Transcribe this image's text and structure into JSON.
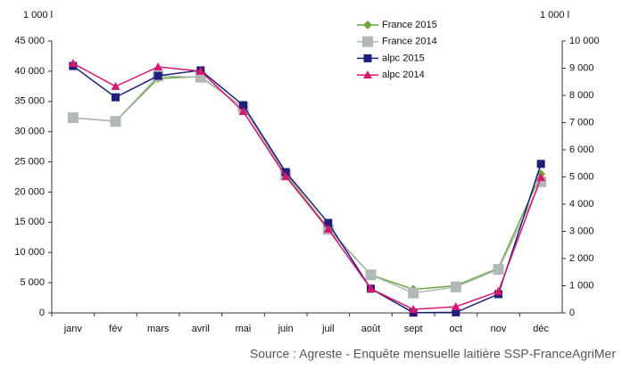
{
  "chart_data": {
    "type": "line",
    "y_axis_label": "1 000 l",
    "y2_axis_label": "1 000 l",
    "source": "Source : Agreste - Enquête mensuelle laitière SSP-FranceAgriMer",
    "categories": [
      "janv",
      "fév",
      "mars",
      "avril",
      "mai",
      "juin",
      "juil",
      "août",
      "sept",
      "oct",
      "nov",
      "déc"
    ],
    "ylim": [
      0,
      45000
    ],
    "yticks": [
      0,
      {
        "value": 5000,
        "label": "5 000"
      },
      {
        "value": 10000,
        "label": "10 000"
      },
      {
        "value": 15000,
        "label": "15 000"
      },
      {
        "value": 20000,
        "label": "20 000"
      },
      {
        "value": 25000,
        "label": "25 000"
      },
      {
        "value": 30000,
        "label": "30 000"
      },
      {
        "value": 35000,
        "label": "35 000"
      },
      {
        "value": 40000,
        "label": "40 000"
      },
      {
        "value": 45000,
        "label": "45 000"
      }
    ],
    "y2lim": [
      0,
      10000
    ],
    "y2ticks": [
      0,
      {
        "value": 1000,
        "label": "1 000"
      },
      {
        "value": 2000,
        "label": "2 000"
      },
      {
        "value": 3000,
        "label": "3 000"
      },
      {
        "value": 4000,
        "label": "4 000"
      },
      {
        "value": 5000,
        "label": "5 000"
      },
      {
        "value": 6000,
        "label": "6 000"
      },
      {
        "value": 7000,
        "label": "7 000"
      },
      {
        "value": 8000,
        "label": "8 000"
      },
      {
        "value": 9000,
        "label": "9 000"
      },
      {
        "value": 10000,
        "label": "10 000"
      }
    ],
    "legend": "top",
    "series": [
      {
        "name": "France 2015",
        "color": "#6aaa3a",
        "marker": "diamond",
        "axis": "y",
        "values": [
          32300,
          31700,
          38800,
          39100,
          34000,
          23000,
          14000,
          6300,
          3900,
          4500,
          7400,
          23000
        ]
      },
      {
        "name": "France 2014",
        "color": "#b0b8b8",
        "marker": "square-large",
        "axis": "y",
        "values": [
          32300,
          31700,
          39200,
          39000,
          34000,
          22800,
          13800,
          6300,
          3300,
          4300,
          7200,
          21700
        ]
      },
      {
        "name": "alpc 2015",
        "color": "#1f1f7a",
        "marker": "square",
        "axis": "y2",
        "values": [
          9080,
          7930,
          8720,
          8920,
          7640,
          5180,
          3310,
          890,
          10,
          20,
          690,
          5480
        ]
      },
      {
        "name": "alpc 2014",
        "color": "#d6186e",
        "marker": "triangle",
        "axis": "y2",
        "values": [
          9180,
          8330,
          9050,
          8890,
          7410,
          5020,
          3080,
          890,
          130,
          230,
          790,
          4980
        ]
      }
    ]
  }
}
